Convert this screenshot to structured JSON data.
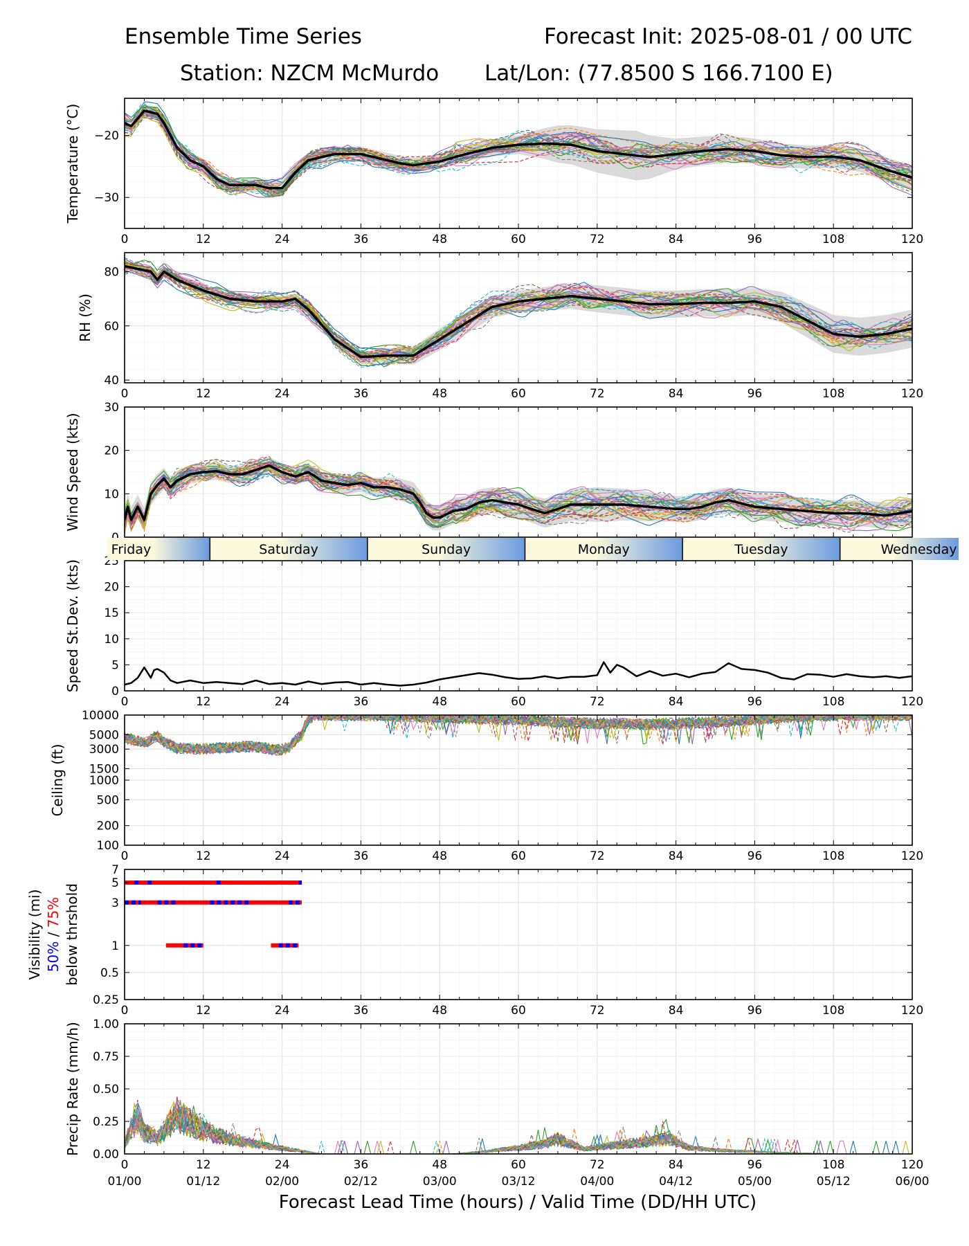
{
  "header": {
    "title_left": "Ensemble Time Series",
    "title_right": "Forecast Init: 2025-08-01 / 00 UTC",
    "station": "Station: NZCM McMurdo",
    "latlon": "Lat/Lon: (77.8500 S 166.7100 E)"
  },
  "x_axis": {
    "label": "Forecast Lead Time (hours) / Valid Time (DD/HH UTC)",
    "lead_hours": [
      0,
      12,
      24,
      36,
      48,
      60,
      72,
      84,
      96,
      108,
      120
    ],
    "lead_labels": [
      "0",
      "12",
      "24",
      "36",
      "48",
      "60",
      "72",
      "84",
      "96",
      "108",
      "120"
    ],
    "valid_labels": [
      "01/00",
      "01/12",
      "02/00",
      "02/12",
      "03/00",
      "03/12",
      "04/00",
      "04/12",
      "05/00",
      "05/12",
      "06/00"
    ],
    "range": [
      0,
      120
    ]
  },
  "day_strip": {
    "days": [
      "Friday",
      "Saturday",
      "Sunday",
      "Monday",
      "Tuesday",
      "Wednesday"
    ],
    "boundaries_hours": [
      13,
      37,
      61,
      85,
      109
    ],
    "label_hours": [
      1,
      25,
      49,
      73,
      97,
      121
    ]
  },
  "colors": {
    "mean": "#000000",
    "spread": "#d3d3d3",
    "pct50": "#0000ff",
    "pct75": "#ff0000",
    "member_palette": [
      "#1f77b4",
      "#ff7f0e",
      "#2ca02c",
      "#d62728",
      "#9467bd",
      "#8c564b",
      "#e377c2",
      "#7f7f7f",
      "#bcbd22",
      "#17becf"
    ],
    "day_gradient": [
      "#6a9be0",
      "#fbf8dc"
    ]
  },
  "chart_data": [
    {
      "id": "temperature",
      "type": "line",
      "ylabel": "Temperature (°C)",
      "ylim": [
        -35,
        -14
      ],
      "yticks": [
        -30,
        -20
      ],
      "ytick_labels": [
        "−30",
        "−20"
      ],
      "scale": "linear",
      "members": 30,
      "mean": {
        "x": [
          0,
          1,
          3,
          5,
          6,
          8,
          10,
          12,
          14,
          16,
          18,
          20,
          22,
          24,
          26,
          28,
          30,
          32,
          34,
          36,
          38,
          40,
          42,
          44,
          46,
          48,
          52,
          56,
          60,
          64,
          68,
          72,
          76,
          80,
          84,
          88,
          92,
          96,
          100,
          104,
          108,
          112,
          116,
          120
        ],
        "y": [
          -18,
          -18.5,
          -16,
          -16.5,
          -18,
          -22,
          -24,
          -25,
          -27,
          -28,
          -28,
          -28,
          -28.5,
          -28.5,
          -26,
          -24,
          -23.5,
          -23,
          -23,
          -23,
          -23.5,
          -24,
          -24.5,
          -24.8,
          -24.5,
          -24.2,
          -23,
          -22,
          -21.5,
          -21.3,
          -21.5,
          -22.5,
          -23,
          -23.5,
          -23,
          -22.5,
          -22.2,
          -22.5,
          -23.2,
          -23.5,
          -23.4,
          -24,
          -25.5,
          -26.8
        ]
      },
      "spread_halfwidth": {
        "x": [
          0,
          24,
          48,
          60,
          66,
          72,
          78,
          84,
          96,
          108,
          120
        ],
        "y": [
          1,
          1.2,
          1.2,
          1.5,
          3,
          3.5,
          4,
          2.5,
          2,
          1.8,
          2
        ]
      }
    },
    {
      "id": "rh",
      "type": "line",
      "ylabel": "RH (%)",
      "ylim": [
        39,
        87
      ],
      "yticks": [
        40,
        60,
        80
      ],
      "ytick_labels": [
        "40",
        "60",
        "80"
      ],
      "scale": "linear",
      "members": 30,
      "mean": {
        "x": [
          0,
          2,
          4,
          5,
          6,
          8,
          12,
          16,
          20,
          24,
          26,
          28,
          32,
          36,
          40,
          44,
          46,
          48,
          52,
          56,
          60,
          64,
          68,
          72,
          76,
          80,
          84,
          88,
          92,
          96,
          100,
          104,
          108,
          112,
          116,
          120
        ],
        "y": [
          82,
          81,
          80,
          77,
          80,
          77,
          73,
          70,
          69,
          69,
          70,
          66,
          55,
          48.5,
          49,
          49,
          52,
          55,
          61,
          67,
          69,
          70,
          71,
          70,
          69,
          68,
          68,
          68.5,
          68.5,
          69,
          67,
          62,
          57,
          56,
          57,
          59
        ]
      },
      "spread_halfwidth": {
        "x": [
          0,
          24,
          36,
          48,
          60,
          72,
          84,
          96,
          108,
          120
        ],
        "y": [
          2,
          2,
          2,
          4,
          4,
          5,
          5,
          5,
          7,
          7
        ]
      }
    },
    {
      "id": "wind_speed",
      "type": "line",
      "ylabel": "Wind Speed (kts)",
      "ylim": [
        0,
        30
      ],
      "yticks": [
        0,
        10,
        20,
        30
      ],
      "ytick_labels": [
        "0",
        "10",
        "20",
        "30"
      ],
      "scale": "linear",
      "members": 30,
      "mean": {
        "x": [
          0,
          0.5,
          1,
          2,
          3,
          4,
          5,
          6,
          7,
          8,
          10,
          12,
          14,
          16,
          18,
          20,
          22,
          24,
          26,
          28,
          30,
          32,
          34,
          36,
          38,
          40,
          42,
          44,
          45,
          46,
          47,
          48,
          50,
          52,
          54,
          56,
          58,
          60,
          64,
          68,
          72,
          76,
          80,
          84,
          86,
          88,
          90,
          92,
          96,
          100,
          104,
          108,
          112,
          116,
          120
        ],
        "y": [
          4,
          7,
          4,
          7,
          4,
          10,
          12,
          13.5,
          11.5,
          13,
          14.5,
          15,
          15.2,
          14.5,
          14.5,
          15.5,
          16.5,
          15,
          14,
          15,
          13,
          12.5,
          12,
          12.5,
          11.5,
          11.5,
          11,
          10,
          8,
          5.5,
          4.5,
          4.5,
          6,
          6.5,
          8,
          8.5,
          8,
          7.5,
          5.5,
          7.5,
          7.5,
          7.5,
          7,
          6.5,
          6.5,
          7,
          8,
          8.5,
          7,
          6.5,
          6,
          5.5,
          5.5,
          5,
          6
        ]
      },
      "spread_halfwidth": {
        "x": [
          0,
          12,
          24,
          36,
          48,
          60,
          72,
          84,
          96,
          108,
          120
        ],
        "y": [
          3,
          2,
          2,
          2,
          3,
          3,
          4,
          3,
          3,
          3,
          3
        ]
      }
    },
    {
      "id": "speed_stdev",
      "type": "line",
      "ylabel": "Speed St.Dev. (kts)",
      "ylim": [
        0,
        25
      ],
      "yticks": [
        0,
        5,
        10,
        15,
        20,
        25
      ],
      "ytick_labels": [
        "0",
        "5",
        "10",
        "15",
        "20",
        "25"
      ],
      "scale": "linear",
      "members": 0,
      "mean": {
        "x": [
          0,
          1,
          2,
          3,
          3.5,
          4,
          4.5,
          5,
          6,
          7,
          8,
          10,
          12,
          14,
          16,
          18,
          20,
          22,
          24,
          26,
          28,
          30,
          32,
          34,
          36,
          38,
          40,
          42,
          44,
          46,
          48,
          50,
          52,
          54,
          56,
          58,
          60,
          62,
          64,
          66,
          68,
          70,
          72,
          73,
          74,
          75,
          76,
          78,
          80,
          82,
          84,
          86,
          88,
          90,
          92,
          94,
          96,
          98,
          100,
          102,
          104,
          106,
          108,
          110,
          112,
          114,
          116,
          118,
          120
        ],
        "y": [
          1.2,
          1.5,
          2.5,
          4.5,
          3.5,
          2.5,
          4,
          4.2,
          3.5,
          2,
          1.5,
          2,
          1.5,
          1.7,
          1.5,
          1.3,
          2,
          1.3,
          1.5,
          1.2,
          1.8,
          1.3,
          1.6,
          1.7,
          1.2,
          1.5,
          1.2,
          1,
          1.2,
          1.6,
          2.2,
          2.6,
          3,
          3.4,
          3.1,
          2.6,
          2.3,
          2.4,
          2.8,
          2.4,
          2.7,
          2.7,
          3,
          5.5,
          3.5,
          5,
          4.5,
          2.8,
          3.8,
          2.9,
          3.3,
          2.6,
          3.3,
          3.6,
          5.3,
          4.2,
          4,
          3.5,
          2.5,
          2.2,
          3.2,
          3.1,
          2.7,
          3.2,
          2.8,
          2.6,
          2.8,
          2.5,
          2.8
        ]
      }
    },
    {
      "id": "ceiling",
      "type": "line",
      "ylabel": "Ceiling (ft)",
      "ylim": [
        100,
        10000
      ],
      "yticks": [
        100,
        200,
        500,
        1000,
        1500,
        3000,
        5000,
        10000
      ],
      "ytick_labels": [
        "100",
        "200",
        "500",
        "1000",
        "1500",
        "3000",
        "5000",
        "10000"
      ],
      "scale": "log",
      "members": 30,
      "shape": {
        "x": [
          0,
          3,
          5,
          6,
          8,
          12,
          16,
          20,
          23,
          25,
          27,
          28,
          29,
          40,
          50,
          60,
          70,
          80,
          90,
          100,
          108,
          120
        ],
        "y": [
          4500,
          3700,
          4800,
          3800,
          3100,
          3000,
          3200,
          3300,
          2900,
          3100,
          5000,
          8500,
          10000,
          9800,
          9000,
          8500,
          7500,
          7200,
          7800,
          9200,
          9900,
          10000
        ]
      }
    },
    {
      "id": "visibility",
      "type": "line",
      "ylabel": "Visibility (mi)",
      "ylabel_50": "50%",
      "ylabel_sep": " / ",
      "ylabel_75": "75%",
      "ylabel_sub": "below thrshold",
      "ylim": [
        0.25,
        7
      ],
      "yticks": [
        0.25,
        0.5,
        1,
        3,
        5,
        7
      ],
      "ytick_labels": [
        "0.25",
        "0.5",
        "1",
        "3",
        "5",
        "7"
      ],
      "scale": "log",
      "members": 30,
      "thresholds": [
        {
          "value": 5,
          "segments_75": [
            [
              0,
              27
            ]
          ],
          "segments_50": [
            [
              1.5,
              2.5
            ],
            [
              3.5,
              4.5
            ],
            [
              14,
              15
            ],
            [
              26.5,
              27
            ]
          ]
        },
        {
          "value": 3,
          "segments_75": [
            [
              0,
              27
            ]
          ],
          "segments_50": [
            [
              0,
              2.5
            ],
            [
              5,
              8
            ],
            [
              13,
              19
            ],
            [
              25,
              27
            ]
          ]
        },
        {
          "value": 1,
          "segments_75": [
            [
              6.3,
              12
            ],
            [
              22.3,
              26.5
            ]
          ],
          "segments_50": [
            [
              9,
              12
            ],
            [
              23.5,
              26.5
            ]
          ]
        }
      ]
    },
    {
      "id": "precip_rate",
      "type": "line",
      "ylabel": "Precip Rate (mm/h)",
      "ylim": [
        0,
        1
      ],
      "yticks": [
        0,
        0.25,
        0.5,
        0.75,
        1
      ],
      "ytick_labels": [
        "0.00",
        "0.25",
        "0.50",
        "0.75",
        "1.00"
      ],
      "scale": "linear",
      "members": 30,
      "shape": {
        "x": [
          0,
          1,
          2,
          3,
          5,
          7,
          8,
          9,
          11,
          14,
          18,
          22,
          26,
          30,
          50,
          55,
          60,
          64,
          66,
          70,
          76,
          80,
          83,
          86,
          90,
          95,
          100,
          108,
          120
        ],
        "y": [
          0.08,
          0.2,
          0.3,
          0.18,
          0.12,
          0.25,
          0.32,
          0.28,
          0.22,
          0.15,
          0.1,
          0.06,
          0.03,
          0.0,
          0.0,
          0.02,
          0.05,
          0.08,
          0.12,
          0.04,
          0.08,
          0.1,
          0.12,
          0.05,
          0.03,
          0.02,
          0.01,
          0.0,
          0.0
        ]
      }
    }
  ]
}
